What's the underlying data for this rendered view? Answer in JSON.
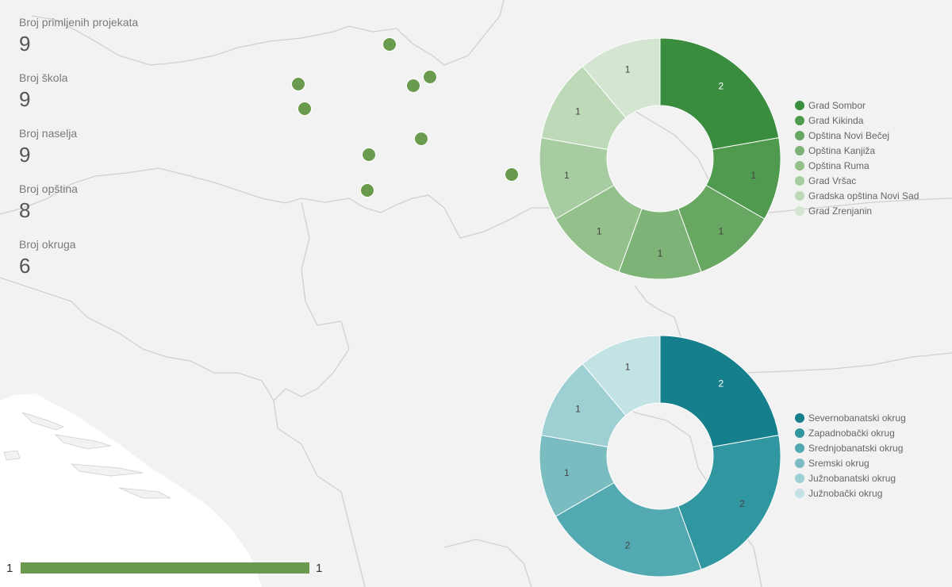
{
  "stats": [
    {
      "label": "Broj primljenih projekata",
      "value": "9"
    },
    {
      "label": "Broj škola",
      "value": "9"
    },
    {
      "label": "Broj naselja",
      "value": "9"
    },
    {
      "label": "Broj opština",
      "value": "8"
    },
    {
      "label": "Broj okruga",
      "value": "6"
    }
  ],
  "map": {
    "marker_color": "#6a9a4e",
    "marker_count": 9
  },
  "chart_data": [
    {
      "type": "pie",
      "donut": true,
      "categories": [
        "Grad Sombor",
        "Grad Kikinda",
        "Opština Novi Bečej",
        "Opština Kanjiža",
        "Opština Ruma",
        "Grad Vršac",
        "Gradska opština Novi Sad",
        "Grad Zrenjanin"
      ],
      "values": [
        2,
        1,
        1,
        1,
        1,
        1,
        1,
        1
      ],
      "colors": [
        "#3a8c3e",
        "#509a4f",
        "#67a762",
        "#7db376",
        "#93c08b",
        "#a8cca1",
        "#bdd9b7",
        "#d4e6d1"
      ],
      "legend": "right"
    },
    {
      "type": "pie",
      "donut": true,
      "categories": [
        "Severnobanatski okrug",
        "Zapadnobački okrug",
        "Srednjobanatski okrug",
        "Sremski okrug",
        "Južnobanatski okrug",
        "Južnobački okrug"
      ],
      "values": [
        2,
        2,
        2,
        1,
        1,
        1
      ],
      "colors": [
        "#167f8c",
        "#30969f",
        "#52a9b2",
        "#7bbcc1",
        "#9dcfd3",
        "#c3e2e4"
      ],
      "legend": "right"
    }
  ],
  "scale": {
    "min_label": "1",
    "max_label": "1",
    "color": "#6a9a4e"
  }
}
